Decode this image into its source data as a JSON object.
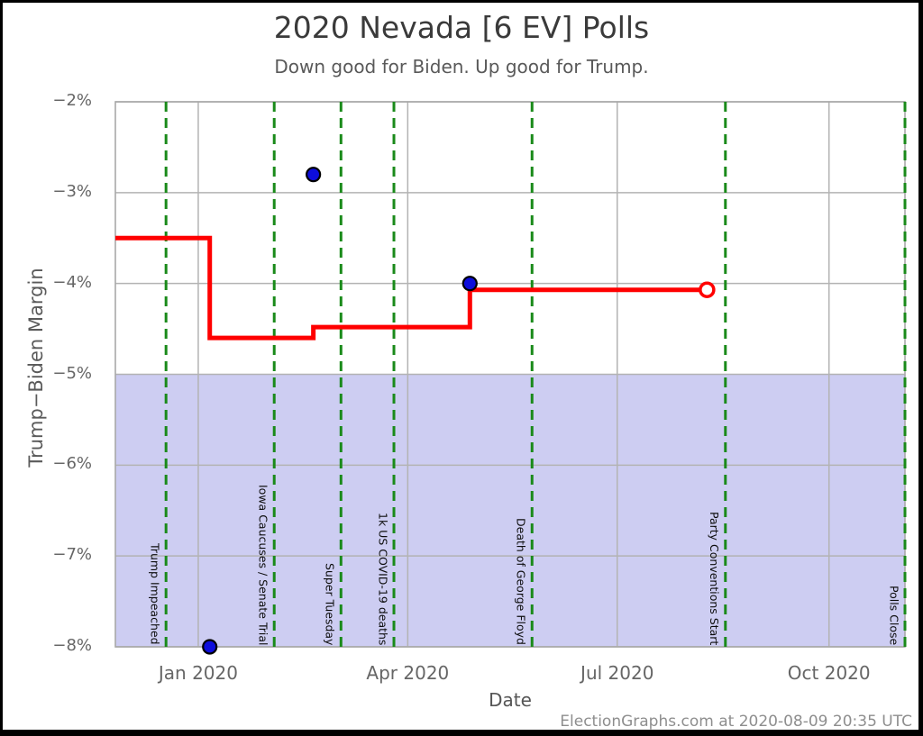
{
  "chart_data": {
    "type": "line",
    "title": "2020 Nevada [6 EV] Polls",
    "subtitle": "Down good for Biden. Up good for Trump.",
    "xlabel": "Date",
    "ylabel": "Trump−Biden Margin",
    "footer": "ElectionGraphs.com at 2020-08-09 20:35 UTC",
    "x_domain": [
      "2019-11-26",
      "2020-11-03"
    ],
    "ylim": [
      -8,
      -2
    ],
    "grid": true,
    "legend": "none",
    "y_ticks": [
      {
        "value": -2,
        "label": "−2%"
      },
      {
        "value": -3,
        "label": "−3%"
      },
      {
        "value": -4,
        "label": "−4%"
      },
      {
        "value": -5,
        "label": "−5%"
      },
      {
        "value": -6,
        "label": "−6%"
      },
      {
        "value": -7,
        "label": "−7%"
      },
      {
        "value": -8,
        "label": "−8%"
      }
    ],
    "x_ticks": [
      {
        "date": "2020-01-01",
        "label": "Jan 2020"
      },
      {
        "date": "2020-04-01",
        "label": "Apr 2020"
      },
      {
        "date": "2020-07-01",
        "label": "Jul 2020"
      },
      {
        "date": "2020-10-01",
        "label": "Oct 2020"
      }
    ],
    "shaded_region": {
      "from": -5,
      "to": -8,
      "color": "#cdcdf2"
    },
    "event_line_color": "#1a8a1a",
    "annotations": [
      {
        "date": "2019-12-18",
        "label": "Trump Impeached"
      },
      {
        "date": "2020-02-03",
        "label": "Iowa Caucuses / Senate Trial"
      },
      {
        "date": "2020-03-03",
        "label": "Super Tuesday"
      },
      {
        "date": "2020-03-26",
        "label": "1k US COVID-19 deaths"
      },
      {
        "date": "2020-05-25",
        "label": "Death of George Floyd"
      },
      {
        "date": "2020-08-17",
        "label": "Party Conventions Start"
      },
      {
        "date": "2020-11-03",
        "label": "Polls Close"
      }
    ],
    "average_line": {
      "name": "poll-average",
      "color": "#ff0000",
      "segments": [
        {
          "from": "2019-11-26",
          "value": -3.5
        },
        {
          "from": "2020-01-06",
          "value": -4.6
        },
        {
          "from": "2020-02-20",
          "value": -4.48
        },
        {
          "from": "2020-04-28",
          "value": -4.07
        }
      ],
      "end_date": "2020-08-09",
      "end_marker": "open-circle"
    },
    "polls": {
      "name": "individual-polls",
      "color": "#0d0ddb",
      "points": [
        {
          "date": "2020-01-06",
          "value": -8.0
        },
        {
          "date": "2020-02-20",
          "value": -2.8
        },
        {
          "date": "2020-04-28",
          "value": -4.0
        }
      ]
    }
  }
}
